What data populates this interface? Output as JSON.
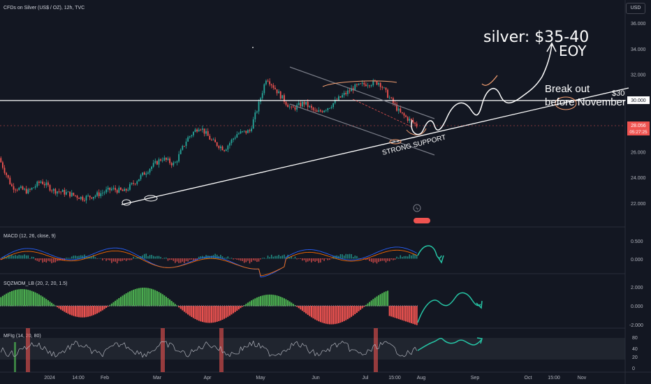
{
  "header": {
    "symbol_title": "CFDs on Silver (US$ / OZ), 12h, TVC",
    "currency_button": "USD"
  },
  "colors": {
    "background": "#131722",
    "up": "#26a69a",
    "down": "#ef5350",
    "squeeze_up": "#4caf50",
    "annotation": "#ffffff",
    "accent_teal": "#26c6a6",
    "accent_orange": "#f7a172"
  },
  "price_panel": {
    "y_ticks": [
      "36.000",
      "34.000",
      "32.000",
      "30.000",
      "28.000",
      "26.000",
      "24.000",
      "22.000"
    ],
    "last_price_label": "28.056",
    "countdown_label": "05:27:25",
    "resistance_label": "30.000"
  },
  "annotations": {
    "target_note": "silver: $35-40",
    "eoy_note": "EOY",
    "breakout_note_line1": "Break out",
    "breakout_note_line2": "before November",
    "level_note": "$30",
    "support_note": "STRONG SUPPORT"
  },
  "indicators": {
    "macd_title": "MACD (12, 26, close, 9)",
    "macd_ticks": [
      "0.500",
      "0.000"
    ],
    "sqzmom_title": "SQZMOM_LB (20, 2, 20, 1.5)",
    "sqzmom_ticks": [
      "2.000",
      "0.000",
      "-2.000"
    ],
    "mfi_title": "MFIg (14, 20, 80)",
    "mfi_ticks": [
      "80",
      "40",
      "20",
      "0"
    ]
  },
  "time_axis": [
    "2024",
    "14:00",
    "Feb",
    "Mar",
    "Apr",
    "May",
    "Jun",
    "Jul",
    "15:00",
    "Aug",
    "Sep",
    "Oct",
    "15:00",
    "Nov"
  ],
  "chart_data": {
    "type": "candlestick",
    "title": "CFDs on Silver (US$ / OZ), 12h, TVC",
    "ylim": [
      20.5,
      37
    ],
    "y_ticks": [
      22,
      24,
      26,
      28,
      30,
      32,
      34,
      36
    ],
    "x_ticks": [
      "2024",
      "14:00",
      "Feb",
      "Mar",
      "Apr",
      "May",
      "Jun",
      "Jul",
      "15:00",
      "Aug",
      "Sep",
      "Oct",
      "15:00",
      "Nov"
    ],
    "price_path": [
      [
        0,
        25.5
      ],
      [
        0.03,
        23.3
      ],
      [
        0.07,
        22.9
      ],
      [
        0.1,
        23.7
      ],
      [
        0.13,
        23.0
      ],
      [
        0.16,
        22.8
      ],
      [
        0.2,
        22.4
      ],
      [
        0.23,
        22.6
      ],
      [
        0.27,
        23.1
      ],
      [
        0.3,
        22.9
      ],
      [
        0.33,
        23.8
      ],
      [
        0.36,
        24.7
      ],
      [
        0.39,
        25.5
      ],
      [
        0.42,
        25.0
      ],
      [
        0.45,
        27.0
      ],
      [
        0.48,
        28.0
      ],
      [
        0.51,
        26.8
      ],
      [
        0.54,
        26.2
      ],
      [
        0.57,
        27.4
      ],
      [
        0.6,
        27.6
      ],
      [
        0.62,
        29.5
      ],
      [
        0.64,
        31.8
      ],
      [
        0.67,
        30.5
      ],
      [
        0.7,
        29.3
      ],
      [
        0.73,
        29.8
      ],
      [
        0.76,
        29.0
      ],
      [
        0.79,
        29.5
      ],
      [
        0.82,
        30.3
      ],
      [
        0.85,
        31.0
      ],
      [
        0.88,
        31.3
      ],
      [
        0.91,
        31.4
      ],
      [
        0.93,
        30.4
      ],
      [
        0.96,
        29.0
      ],
      [
        1.0,
        28.05
      ]
    ],
    "last_price": 28.056,
    "horizontal_levels": [
      30.0
    ],
    "mfi_levels": [
      80,
      20
    ]
  }
}
